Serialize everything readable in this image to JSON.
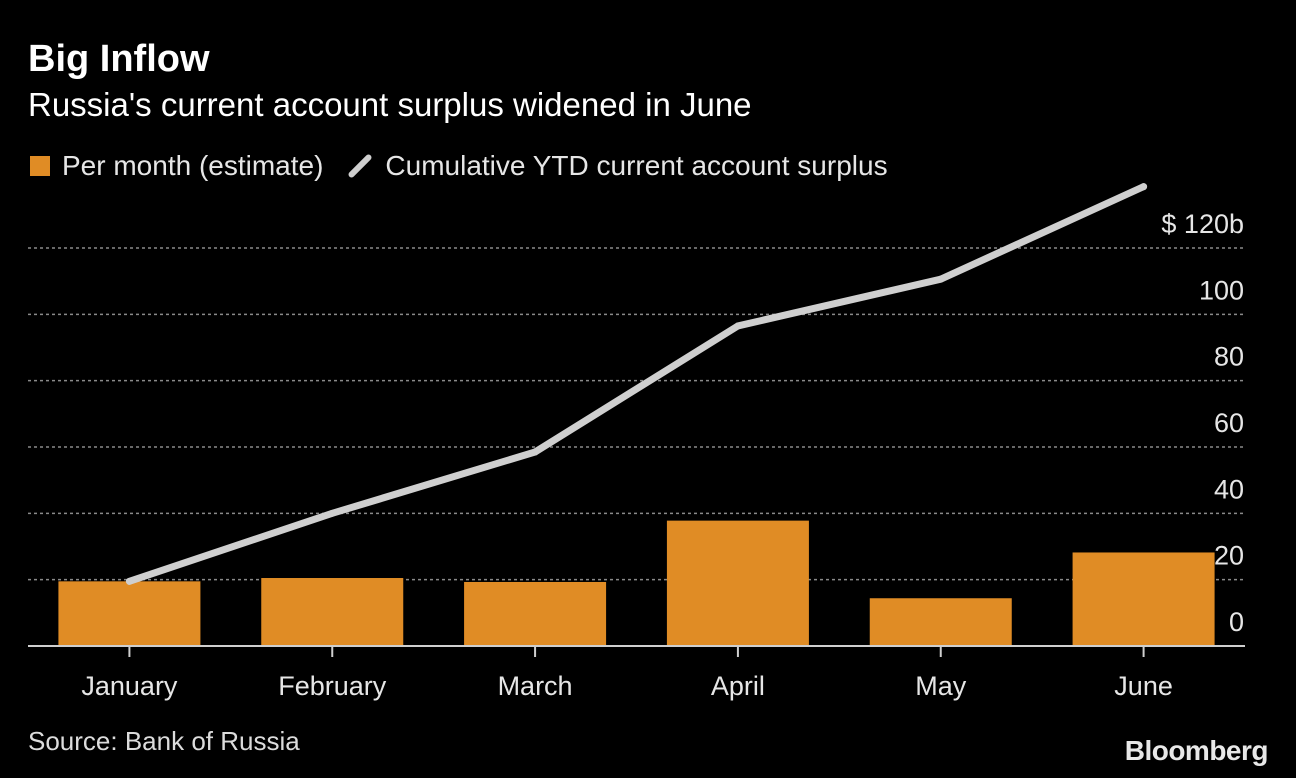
{
  "title": "Big Inflow",
  "subtitle": "Russia's current account surplus widened in June",
  "legend": {
    "bars_label": "Per month (estimate)",
    "line_label": "Cumulative YTD current account surplus"
  },
  "source": "Source: Bank of Russia",
  "brand": "Bloomberg",
  "colors": {
    "bar": "#e08c25",
    "line": "#cfcfcf",
    "grid": "#8a8a8a",
    "axis": "#cfcfcf"
  },
  "chart_data": {
    "type": "bar",
    "title": "Big Inflow",
    "subtitle": "Russia's current account surplus widened in June",
    "categories": [
      "January",
      "February",
      "March",
      "April",
      "May",
      "June"
    ],
    "series": [
      {
        "name": "Per month (estimate)",
        "type": "bar",
        "values": [
          19.5,
          20.5,
          19.3,
          37.8,
          14.4,
          28.2
        ]
      },
      {
        "name": "Cumulative YTD current account surplus",
        "type": "line",
        "values": [
          19.5,
          40,
          58.5,
          96.5,
          110.6,
          138.5
        ]
      }
    ],
    "yticks": [
      0,
      20,
      40,
      60,
      80,
      100,
      120
    ],
    "ytick_labels": [
      "0",
      "20",
      "40",
      "60",
      "80",
      "100",
      "$ 120b"
    ],
    "ylim": [
      0,
      120
    ],
    "xlabel": "",
    "ylabel": "",
    "grid": true
  }
}
